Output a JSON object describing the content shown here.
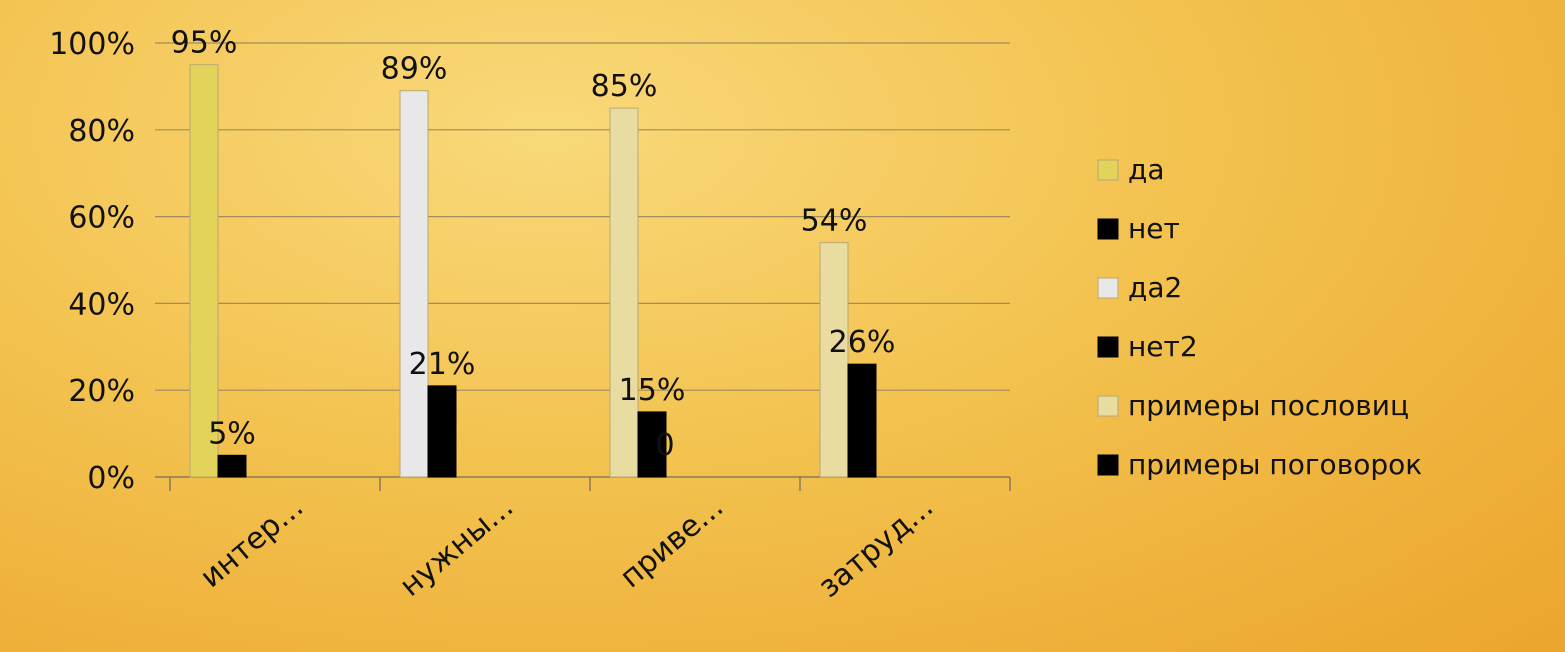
{
  "chart_data": {
    "type": "bar",
    "categories": [
      "интер...",
      "нужны...",
      "приве...",
      "затруд..."
    ],
    "series": [
      {
        "name": "да",
        "values": [
          95,
          null,
          null,
          null
        ],
        "labels": [
          "95%",
          "",
          "",
          ""
        ],
        "color": "#e3d35a"
      },
      {
        "name": "нет",
        "values": [
          5,
          null,
          null,
          null
        ],
        "labels": [
          "5%",
          "",
          "",
          ""
        ],
        "color": "#000000"
      },
      {
        "name": "да2",
        "values": [
          null,
          89,
          null,
          null
        ],
        "labels": [
          "",
          "89%",
          "",
          ""
        ],
        "color": "#e8e8e8"
      },
      {
        "name": "нет2",
        "values": [
          null,
          21,
          null,
          null
        ],
        "labels": [
          "",
          "21%",
          "",
          ""
        ],
        "color": "#000000"
      },
      {
        "name": "примеры пословиц",
        "values": [
          null,
          null,
          85,
          54
        ],
        "labels": [
          "",
          "",
          "85%",
          "54%"
        ],
        "color": "#e9dca0"
      },
      {
        "name": "примеры поговорок",
        "values": [
          null,
          null,
          15,
          26
        ],
        "labels": [
          "",
          "",
          "15%",
          "26%"
        ],
        "color": "#000000"
      }
    ],
    "extra_labels": [
      {
        "category": 2,
        "text": "0"
      }
    ],
    "ylim": [
      0,
      100
    ],
    "yticks": [
      "0%",
      "20%",
      "40%",
      "60%",
      "80%",
      "100%"
    ],
    "grid": true,
    "legend": "right",
    "xlabel": "",
    "ylabel": "",
    "title": ""
  }
}
